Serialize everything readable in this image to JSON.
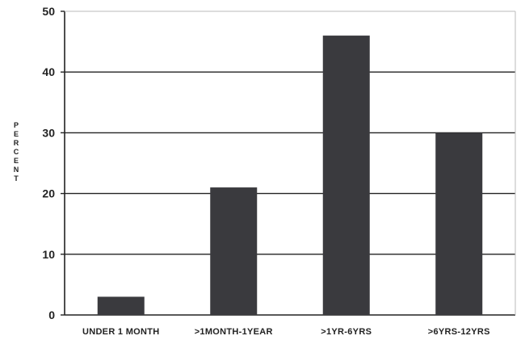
{
  "chart_data": {
    "type": "bar",
    "title": "",
    "xlabel": "",
    "ylabel": "PERCENT",
    "ylim": [
      0,
      50
    ],
    "yticks": [
      0,
      10,
      20,
      30,
      40,
      50
    ],
    "grid": true,
    "categories": [
      "UNDER 1 MONTH",
      ">1MONTH-1YEAR",
      ">1YR-6YRS",
      ">6YRS-12YRS"
    ],
    "values": [
      3,
      21,
      46,
      30
    ],
    "colors": {
      "bar": "#3a3a3e",
      "axis": "#222222",
      "grid": "#222222"
    }
  }
}
